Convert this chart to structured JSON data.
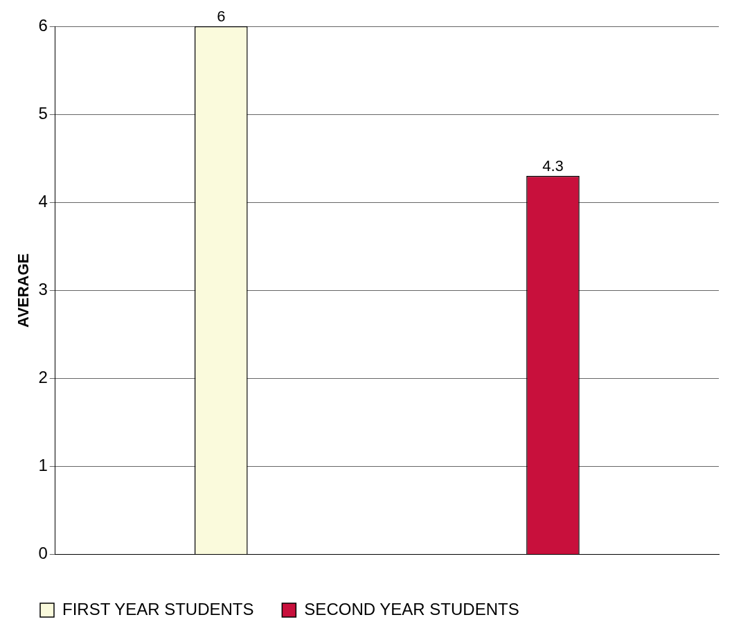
{
  "chart_data": {
    "type": "bar",
    "ylabel": "AVERAGE",
    "categories": [
      null
    ],
    "series": [
      {
        "name": "FIRST YEAR STUDENTS",
        "color": "#fafadc",
        "values": [
          6
        ]
      },
      {
        "name": "SECOND YEAR STUDENTS",
        "color": "#c8103c",
        "values": [
          4.3
        ]
      }
    ],
    "ylim": [
      0,
      6
    ],
    "yticks": [
      0,
      1,
      2,
      3,
      4,
      5,
      6
    ],
    "grid": "y",
    "legend": "bottom",
    "data_labels": true
  }
}
